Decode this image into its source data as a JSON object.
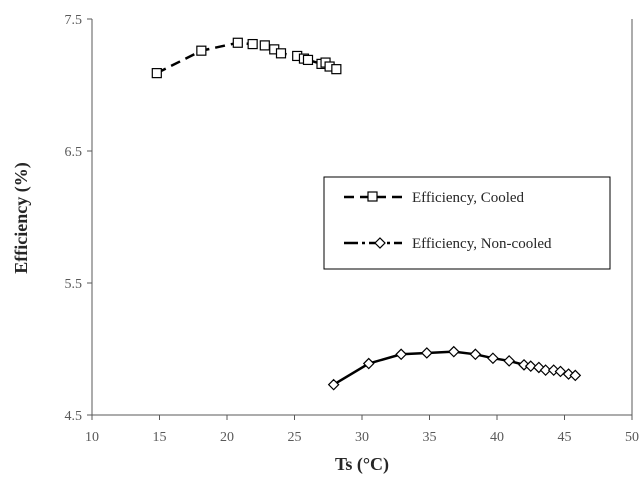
{
  "chart_data": {
    "type": "scatter",
    "xlabel": "Ts (°C)",
    "ylabel": "Efficiency (%)",
    "xlim": [
      10,
      50
    ],
    "ylim": [
      4.5,
      7.5
    ],
    "xticks": [
      "10",
      "15",
      "20",
      "25",
      "30",
      "35",
      "40",
      "45",
      "50"
    ],
    "yticks": [
      "4.5",
      "5.5",
      "6.5",
      "7.5"
    ],
    "grid": false,
    "legend_position": "right",
    "series": [
      {
        "name": "Efficiency, Cooled",
        "marker": "square",
        "line": "dashed",
        "color": "#000000",
        "points": [
          [
            14.8,
            7.09
          ],
          [
            18.1,
            7.26
          ],
          [
            20.8,
            7.32
          ],
          [
            21.9,
            7.31
          ],
          [
            22.8,
            7.3
          ],
          [
            23.5,
            7.27
          ],
          [
            24.0,
            7.24
          ],
          [
            25.2,
            7.22
          ],
          [
            25.7,
            7.2
          ],
          [
            26.0,
            7.19
          ],
          [
            27.0,
            7.16
          ],
          [
            27.3,
            7.17
          ],
          [
            27.6,
            7.14
          ],
          [
            28.1,
            7.12
          ]
        ]
      },
      {
        "name": "Efficiency, Non-cooled",
        "marker": "diamond",
        "line": "solid",
        "color": "#000000",
        "points": [
          [
            27.9,
            4.73
          ],
          [
            30.5,
            4.89
          ],
          [
            32.9,
            4.96
          ],
          [
            34.8,
            4.97
          ],
          [
            36.8,
            4.98
          ],
          [
            38.4,
            4.96
          ],
          [
            39.7,
            4.93
          ],
          [
            40.9,
            4.91
          ],
          [
            42.0,
            4.88
          ],
          [
            42.5,
            4.87
          ],
          [
            43.1,
            4.86
          ],
          [
            43.6,
            4.84
          ],
          [
            44.2,
            4.84
          ],
          [
            44.7,
            4.83
          ],
          [
            45.3,
            4.81
          ],
          [
            45.8,
            4.8
          ]
        ]
      }
    ]
  }
}
